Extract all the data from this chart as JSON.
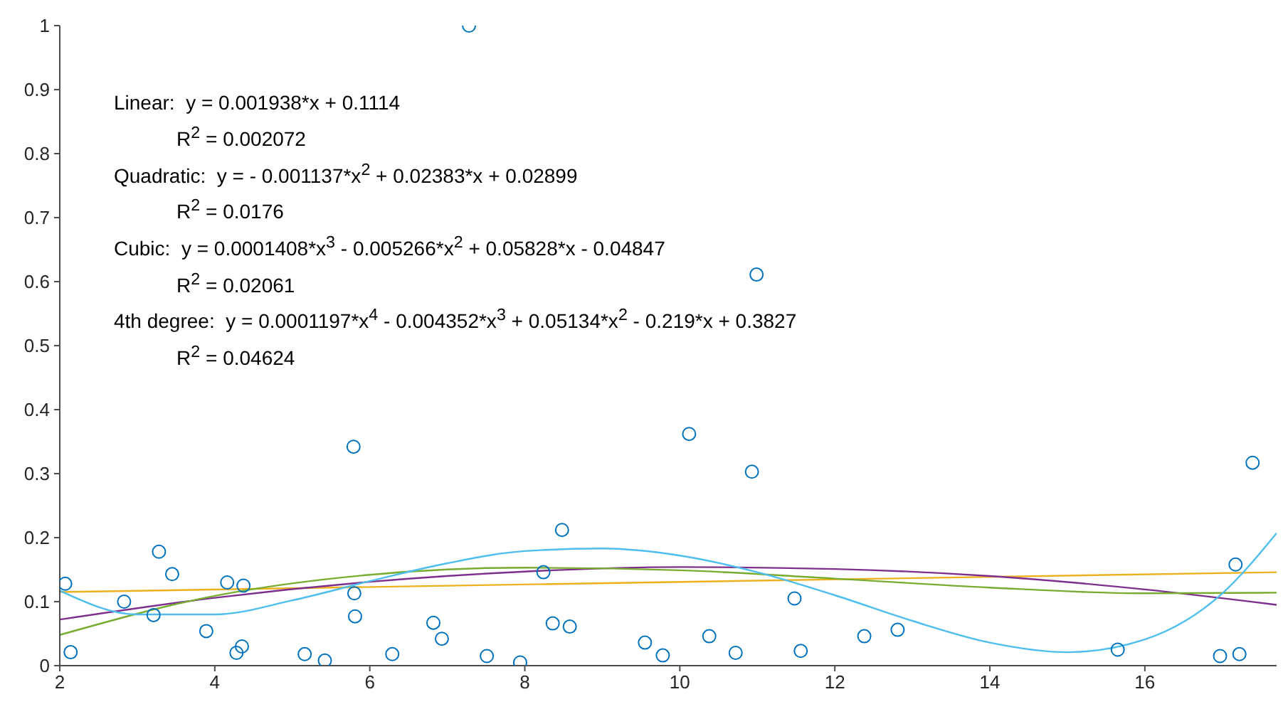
{
  "chart_data": {
    "type": "scatter",
    "xlim": [
      2,
      17.7
    ],
    "xticks": [
      2,
      4,
      6,
      8,
      10,
      12,
      14,
      16
    ],
    "ylim": [
      0,
      1
    ],
    "yticks": [
      0,
      0.1,
      0.2,
      0.3,
      0.4,
      0.5,
      0.6,
      0.7,
      0.8,
      0.9,
      1
    ],
    "marker": "circle",
    "grid": false,
    "legend": false,
    "annotations": [
      "Linear:  y = 0.001938*x + 0.1114",
      "R$^{2}$ = 0.002072",
      "Quadratic:  y = - 0.001137*x$^{2}$ + 0.02383*x + 0.02899",
      "R$^{2}$ = 0.0176",
      "Cubic:  y = 0.0001408*x$^{3}$ - 0.005266*x$^{2}$ + 0.05828*x - 0.04847",
      "R$^{2}$ = 0.02061",
      "4th degree:  y = 0.0001197*x$^{4}$ - 0.004352*x$^{3}$ + 0.05134*x$^{2}$ - 0.219*x + 0.3827",
      "R$^{2}$ = 0.04624"
    ],
    "series": [
      {
        "color": "#0072bd",
        "x": [
          2.07,
          2.14,
          2.83,
          3.21,
          3.28,
          3.45,
          3.89,
          4.16,
          4.28,
          4.35,
          4.37,
          5.16,
          5.42,
          5.79,
          5.8,
          5.81,
          6.29,
          6.82,
          6.93,
          7.28,
          7.51,
          7.94,
          8.24,
          8.36,
          8.48,
          8.58,
          9.55,
          9.78,
          10.12,
          10.38,
          10.72,
          10.93,
          10.99,
          11.48,
          11.56,
          12.38,
          12.81,
          15.65,
          16.97,
          17.17,
          17.22,
          17.39
        ],
        "values": [
          0.128,
          0.021,
          0.1,
          0.079,
          0.178,
          0.143,
          0.054,
          0.13,
          0.02,
          0.03,
          0.125,
          0.018,
          0.008,
          0.342,
          0.113,
          0.077,
          0.018,
          0.067,
          0.042,
          1.0,
          0.015,
          0.005,
          0.146,
          0.066,
          0.212,
          0.061,
          0.036,
          0.016,
          0.362,
          0.046,
          0.02,
          0.303,
          0.611,
          0.105,
          0.023,
          0.046,
          0.056,
          0.025,
          0.015,
          0.158,
          0.018,
          0.317
        ]
      },
      {
        "type": "line",
        "marker": "none",
        "color": "#edb120",
        "x": [
          2,
          17.7
        ],
        "values": [
          0.115,
          0.146
        ]
      },
      {
        "type": "line",
        "marker": "none",
        "color": "#7e2f8e",
        "x": [
          2,
          4,
          6,
          8,
          10,
          12,
          14,
          16,
          17.7
        ],
        "values": [
          0.072,
          0.106,
          0.131,
          0.147,
          0.154,
          0.151,
          0.14,
          0.119,
          0.095
        ]
      },
      {
        "type": "line",
        "marker": "none",
        "color": "#77ac30",
        "x": [
          2,
          4,
          6,
          8,
          10,
          12,
          14,
          16,
          17.7
        ],
        "values": [
          0.048,
          0.109,
          0.142,
          0.153,
          0.149,
          0.136,
          0.122,
          0.113,
          0.114
        ]
      },
      {
        "type": "line",
        "marker": "none",
        "color": "#4dbeee",
        "x": [
          2,
          3,
          4,
          5,
          6,
          7,
          8,
          9,
          10,
          11,
          12,
          13,
          14,
          15,
          16,
          17,
          17.7
        ],
        "values": [
          0.117,
          0.08,
          0.08,
          0.102,
          0.132,
          0.16,
          0.179,
          0.183,
          0.172,
          0.146,
          0.11,
          0.07,
          0.036,
          0.021,
          0.041,
          0.113,
          0.207
        ]
      }
    ]
  }
}
